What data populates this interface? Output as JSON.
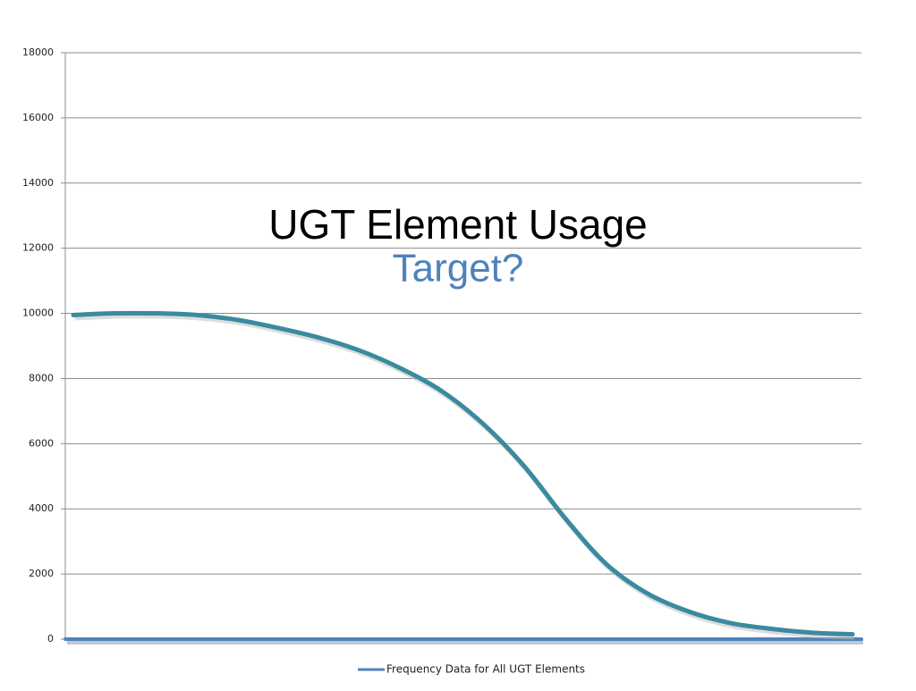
{
  "chart_data": {
    "type": "line",
    "title": "UGT Element Usage",
    "subtitle": "Target?",
    "categories": [
      null,
      null,
      null,
      null,
      null,
      null,
      null,
      null,
      null,
      null,
      null,
      null,
      null,
      null,
      null,
      null,
      null,
      null,
      null,
      null
    ],
    "series": [
      {
        "name": "Frequency Data for All UGT Elements",
        "color": "#4f81bd",
        "values": [
          0,
          0,
          0,
          0,
          0,
          0,
          0,
          0,
          0,
          0,
          0,
          0,
          0,
          0,
          0,
          0,
          0,
          0,
          0,
          0
        ]
      },
      {
        "color": "#3a8aa0",
        "values": [
          9950,
          10000,
          10000,
          9950,
          9800,
          9550,
          9250,
          8850,
          8300,
          7600,
          6600,
          5300,
          3700,
          2300,
          1400,
          850,
          500,
          320,
          200,
          150
        ]
      }
    ],
    "ylim": [
      0,
      18000
    ],
    "yticks": [
      0,
      2000,
      4000,
      6000,
      8000,
      10000,
      12000,
      14000,
      16000,
      18000
    ],
    "grid": true,
    "legend": "bottom"
  }
}
